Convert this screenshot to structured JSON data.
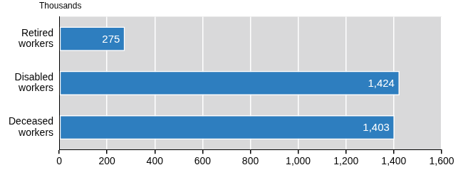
{
  "chart_data": {
    "type": "bar",
    "orientation": "horizontal",
    "xlabel": "Thousands",
    "categories": [
      "Retired workers",
      "Disabled workers",
      "Deceased workers"
    ],
    "values": [
      275,
      1424,
      1403
    ],
    "value_labels": [
      "275",
      "1,424",
      "1,403"
    ],
    "data_labels": true,
    "color": "#2e7ebf",
    "xlim": [
      0,
      1600
    ],
    "xticks": [
      0,
      200,
      400,
      600,
      800,
      {
        "value": 1000,
        "label": "1,000"
      },
      {
        "value": 1200,
        "label": "1,200"
      },
      {
        "value": 1400,
        "label": "1,400"
      },
      {
        "value": 1600,
        "label": "1,600"
      }
    ],
    "grid": true
  }
}
